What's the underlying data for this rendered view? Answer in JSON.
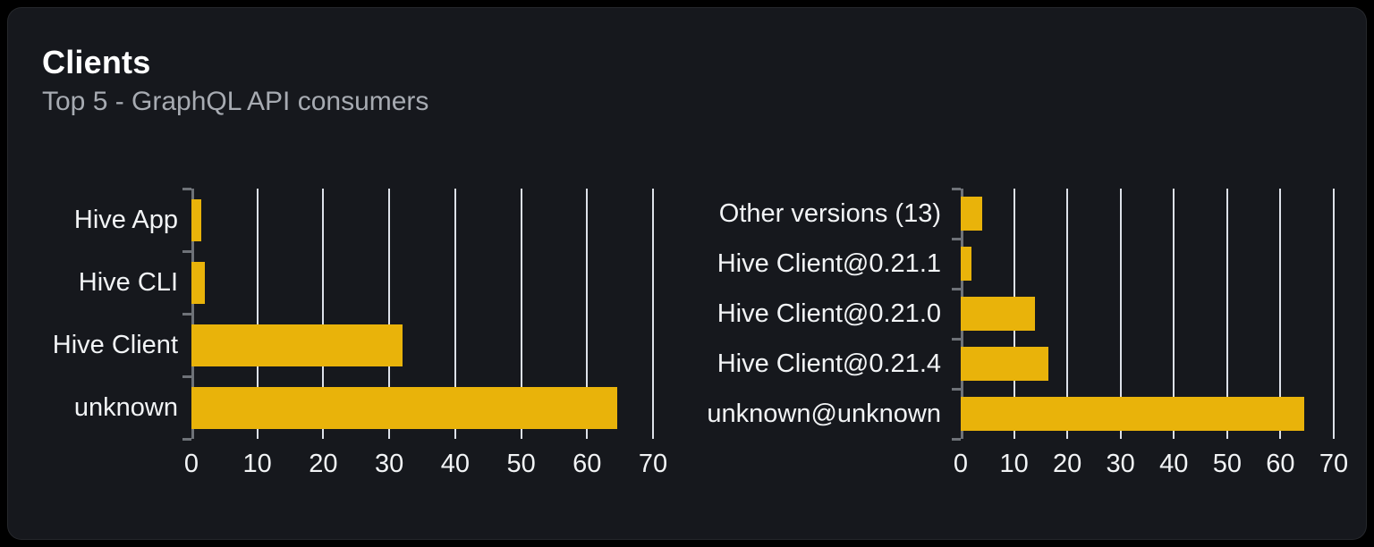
{
  "card": {
    "title": "Clients",
    "subtitle": "Top 5 - GraphQL API consumers"
  },
  "colors": {
    "page_bg": "#000000",
    "card_bg": "#16181d",
    "bar": "#e9b30a",
    "grid_line": "#dde1e9",
    "axis": "#6e7278",
    "label_text": "#f2f4f6",
    "subtitle_text": "#a7abb2",
    "title_text": "#ffffff"
  },
  "chart_data": [
    {
      "type": "bar",
      "orientation": "horizontal",
      "name": "clients-by-name",
      "categories": [
        "Hive App",
        "Hive CLI",
        "Hive Client",
        "unknown"
      ],
      "values": [
        1.5,
        2,
        32,
        64.5
      ],
      "xlim": [
        0,
        70
      ],
      "xticks": [
        0,
        10,
        20,
        30,
        40,
        50,
        60,
        70
      ],
      "xtick_labels": [
        "0",
        "10",
        "20",
        "30",
        "40",
        "50",
        "60",
        "70"
      ],
      "grid": true,
      "legend": false,
      "bar_color": "#e9b30a"
    },
    {
      "type": "bar",
      "orientation": "horizontal",
      "name": "clients-by-version",
      "categories": [
        "Other versions (13)",
        "Hive Client@0.21.1",
        "Hive Client@0.21.0",
        "Hive Client@0.21.4",
        "unknown@unknown"
      ],
      "values": [
        4,
        2,
        14,
        16.5,
        64.5
      ],
      "xlim": [
        0,
        70
      ],
      "xticks": [
        0,
        10,
        20,
        30,
        40,
        50,
        60,
        70
      ],
      "xtick_labels": [
        "0",
        "10",
        "20",
        "30",
        "40",
        "50",
        "60",
        "70"
      ],
      "grid": true,
      "legend": false,
      "bar_color": "#e9b30a"
    }
  ]
}
